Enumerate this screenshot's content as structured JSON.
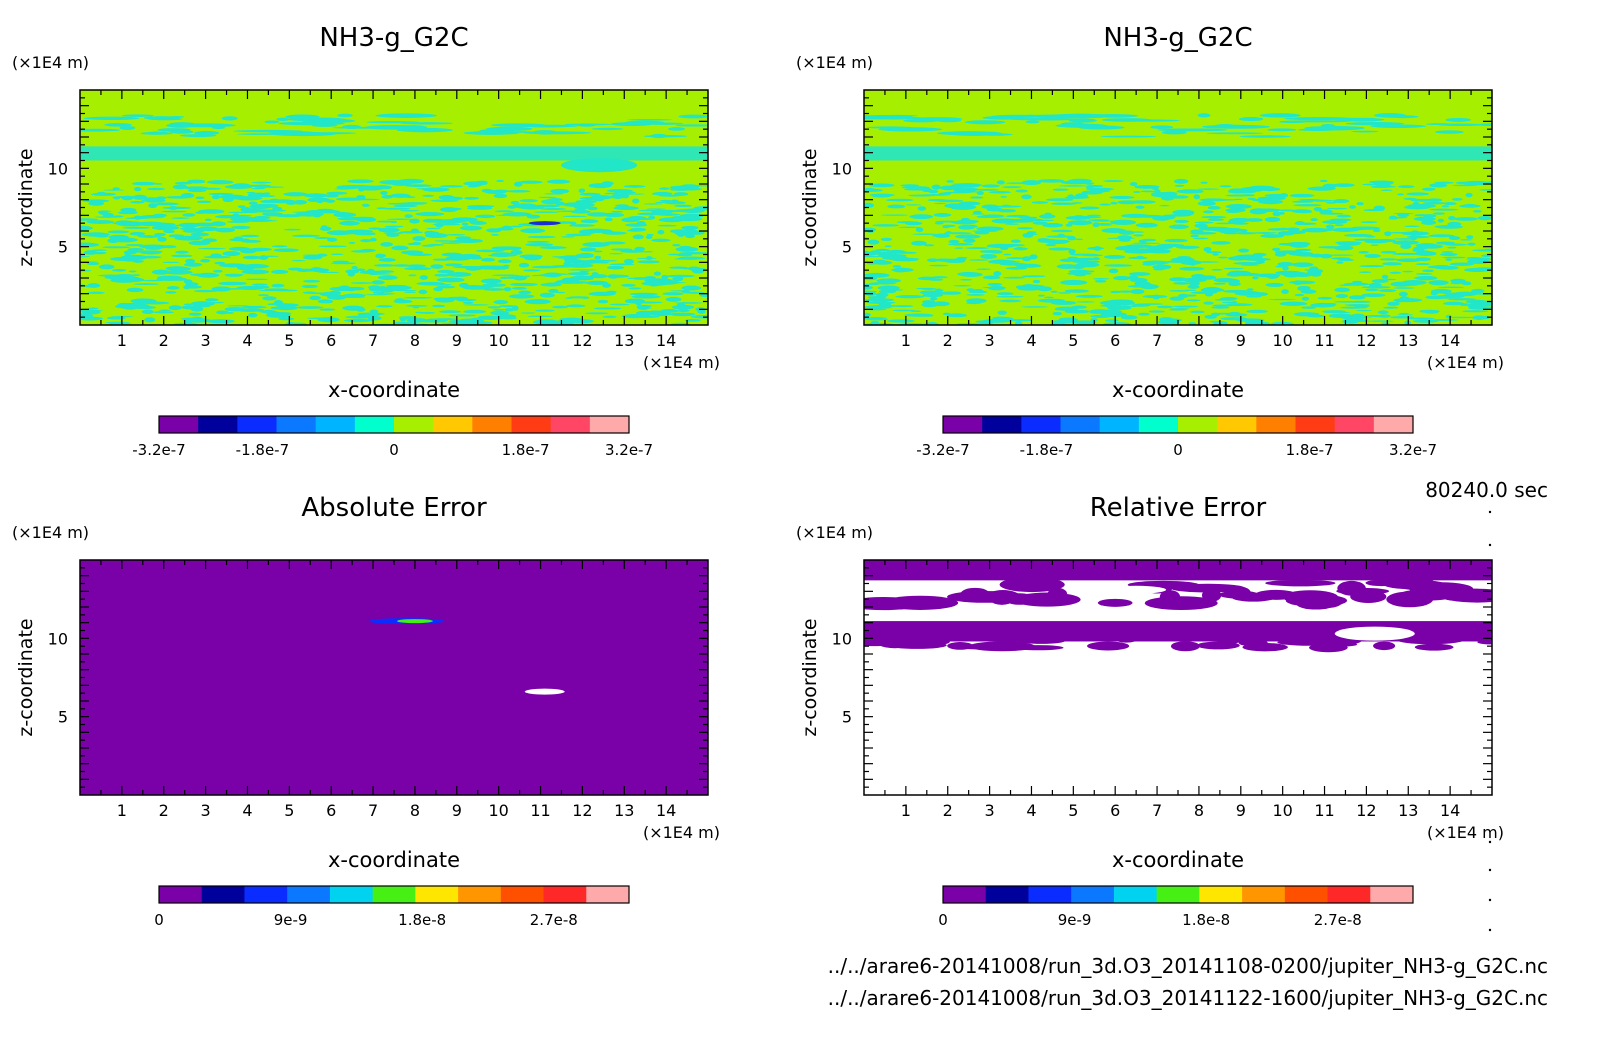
{
  "time_label": "80240.0 sec",
  "files": [
    "../../arare6-20141008/run_3d.O3_20141108-0200/jupiter_NH3-g_G2C.nc",
    "../../arare6-20141008/run_3d.O3_20141122-1600/jupiter_NH3-g_G2C.nc"
  ],
  "colors": {
    "field_high": "#a6ef00",
    "field_low": "#22e6c8",
    "anomaly": "#1a2fd0",
    "error_background": "#7a00a8",
    "white": "#ffffff"
  },
  "chart_data": [
    {
      "type": "heatmap",
      "title": "NH3-g_G2C",
      "xlabel": "x-coordinate",
      "ylabel": "z-coordinate",
      "x_unit": "(×1E4 m)",
      "y_unit": "(×1E4 m)",
      "xlim": [
        0,
        15
      ],
      "ylim": [
        0,
        15
      ],
      "xticks": [
        "1",
        "2",
        "3",
        "4",
        "5",
        "6",
        "7",
        "8",
        "9",
        "10",
        "11",
        "12",
        "13",
        "14"
      ],
      "yticks": [
        "5",
        "10"
      ],
      "colorbar": {
        "levels": 11,
        "colors": [
          "#7a00a8",
          "#00009c",
          "#0a2cff",
          "#0a78ff",
          "#00b4ff",
          "#00ffcc",
          "#a6ef00",
          "#ffc800",
          "#ff7f00",
          "#ff3c14",
          "#ff4664",
          "#ffaaaa"
        ],
        "ticks": [
          "-3.2e-7",
          "-1.8e-7",
          "0",
          "1.8e-7",
          "3.2e-7"
        ]
      }
    },
    {
      "type": "heatmap",
      "title": "NH3-g_G2C",
      "xlabel": "x-coordinate",
      "ylabel": "z-coordinate",
      "x_unit": "(×1E4 m)",
      "y_unit": "(×1E4 m)",
      "xlim": [
        0,
        15
      ],
      "ylim": [
        0,
        15
      ],
      "xticks": [
        "1",
        "2",
        "3",
        "4",
        "5",
        "6",
        "7",
        "8",
        "9",
        "10",
        "11",
        "12",
        "13",
        "14"
      ],
      "yticks": [
        "5",
        "10"
      ],
      "colorbar": {
        "levels": 11,
        "ticks": [
          "-3.2e-7",
          "-1.8e-7",
          "0",
          "1.8e-7",
          "3.2e-7"
        ]
      }
    },
    {
      "type": "heatmap",
      "title": "Absolute Error",
      "xlabel": "x-coordinate",
      "ylabel": "z-coordinate",
      "x_unit": "(×1E4 m)",
      "y_unit": "(×1E4 m)",
      "xlim": [
        0,
        15
      ],
      "ylim": [
        0,
        15
      ],
      "xticks": [
        "1",
        "2",
        "3",
        "4",
        "5",
        "6",
        "7",
        "8",
        "9",
        "10",
        "11",
        "12",
        "13",
        "14"
      ],
      "yticks": [
        "5",
        "10"
      ],
      "colorbar": {
        "levels": 11,
        "colors": [
          "#7a00a8",
          "#00009c",
          "#0a2cff",
          "#0a78ff",
          "#00d2f0",
          "#46f014",
          "#ffe600",
          "#ff9600",
          "#ff5000",
          "#ff2828",
          "#ffaaaa"
        ],
        "ticks": [
          "0",
          "9e-9",
          "1.8e-8",
          "2.7e-8"
        ]
      }
    },
    {
      "type": "heatmap",
      "title": "Relative Error",
      "xlabel": "x-coordinate",
      "ylabel": "z-coordinate",
      "x_unit": "(×1E4 m)",
      "y_unit": "(×1E4 m)",
      "xlim": [
        0,
        15
      ],
      "ylim": [
        0,
        15
      ],
      "xticks": [
        "1",
        "2",
        "3",
        "4",
        "5",
        "6",
        "7",
        "8",
        "9",
        "10",
        "11",
        "12",
        "13",
        "14"
      ],
      "yticks": [
        "5",
        "10"
      ],
      "colorbar": {
        "levels": 11,
        "ticks": [
          "0",
          "9e-9",
          "1.8e-8",
          "2.7e-8"
        ]
      }
    }
  ]
}
